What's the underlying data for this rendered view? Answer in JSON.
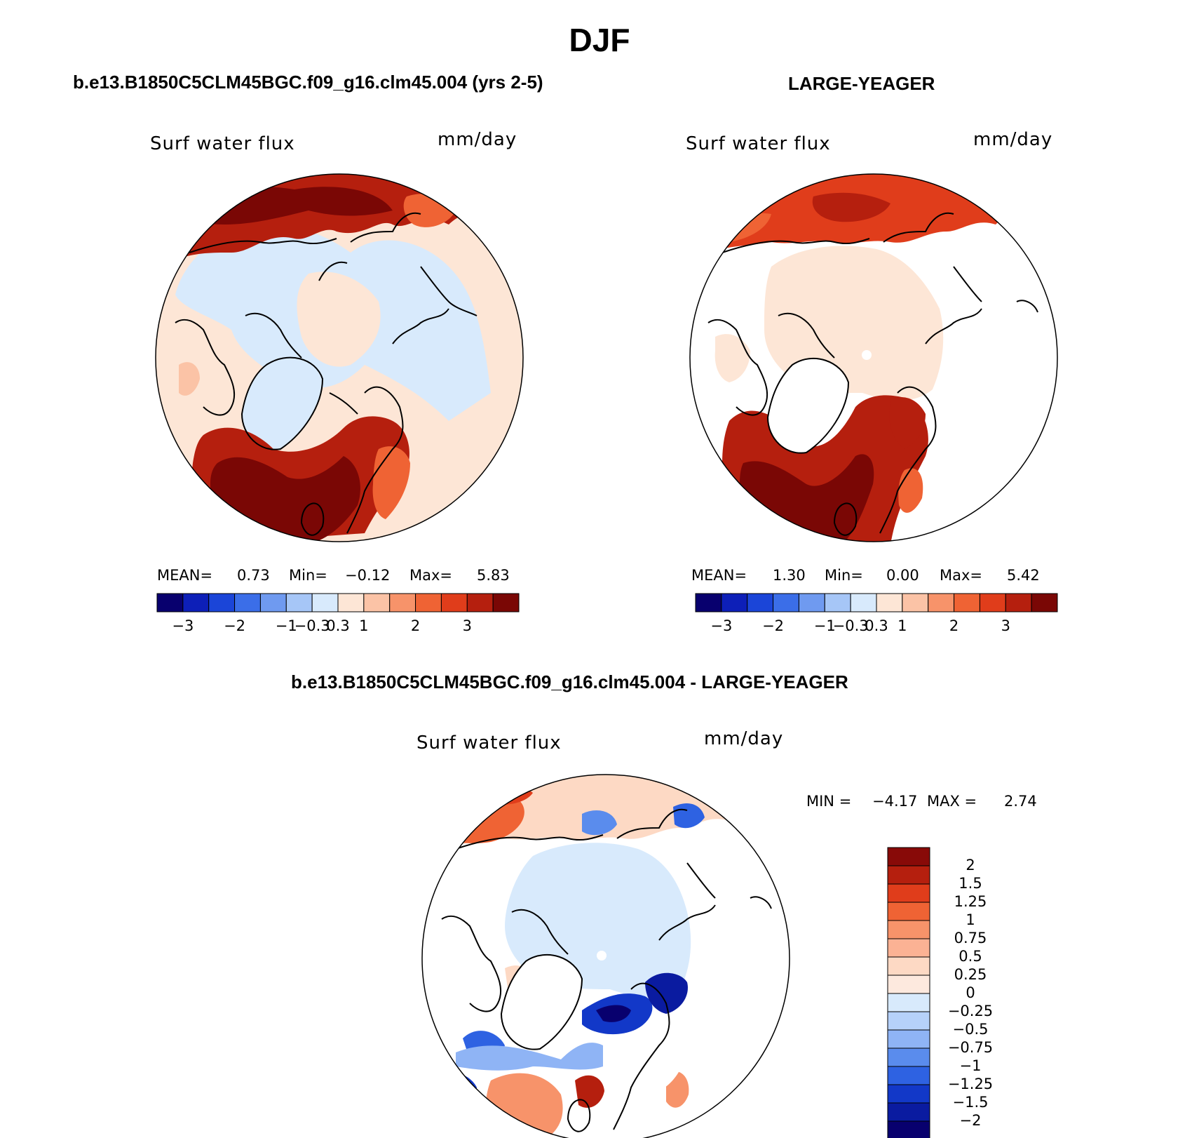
{
  "title": "DJF",
  "panels": [
    {
      "heading": "b.e13.B1850C5CLM45BGC.f09_g16.clm45.004 (yrs 2-5)",
      "variable": "Surf water flux",
      "units": "mm/day",
      "stats": {
        "mean_label": "MEAN=",
        "mean": "0.73",
        "min_label": "Min=",
        "min": "−0.12",
        "max_label": "Max=",
        "max": "5.83"
      },
      "colorbar_ticks": [
        "−3",
        "−2",
        "−1",
        "−0.3",
        "0.3",
        "1",
        "2",
        "3"
      ]
    },
    {
      "heading": "LARGE-YEAGER",
      "variable": "Surf water flux",
      "units": "mm/day",
      "stats": {
        "mean_label": "MEAN=",
        "mean": "1.30",
        "min_label": "Min=",
        "min": "0.00",
        "max_label": "Max=",
        "max": "5.42"
      },
      "colorbar_ticks": [
        "−3",
        "−2",
        "−1",
        "−0.3",
        "0.3",
        "1",
        "2",
        "3"
      ]
    },
    {
      "heading": "b.e13.B1850C5CLM45BGC.f09_g16.clm45.004 - LARGE-YEAGER",
      "variable": "Surf water flux",
      "units": "mm/day",
      "stats": {
        "min_label": "MIN =",
        "min": "−4.17",
        "max_label": "MAX =",
        "max": "2.74"
      },
      "colorbar_ticks": [
        "2",
        "1.5",
        "1.25",
        "1",
        "0.75",
        "0.5",
        "0.25",
        "0",
        "−0.25",
        "−0.5",
        "−0.75",
        "−1",
        "−1.25",
        "−1.5",
        "−2"
      ]
    }
  ],
  "colors": {
    "abs_scale": [
      "#08006e",
      "#0d1fb8",
      "#1b45d8",
      "#3b6ee8",
      "#6f9af0",
      "#a6c6f7",
      "#d8eafc",
      "#fde6d6",
      "#fbc3a6",
      "#f7936a",
      "#ef6334",
      "#e03d1b",
      "#b51f0e",
      "#7a0705"
    ],
    "diff_scale": [
      "#880a08",
      "#b51f0e",
      "#e03d1b",
      "#ef6334",
      "#f7936a",
      "#fbb294",
      "#fdd9c4",
      "#fde9de",
      "#d8eafc",
      "#b6d1fa",
      "#8fb4f5",
      "#5a8ced",
      "#2e62e2",
      "#1238c8",
      "#0a1ba0",
      "#08006e"
    ]
  }
}
